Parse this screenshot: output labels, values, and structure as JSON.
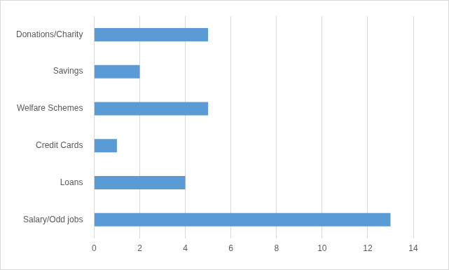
{
  "chart_data": {
    "type": "bar",
    "orientation": "horizontal",
    "categories": [
      "Donations/Charity",
      "Savings",
      "Welfare Schemes",
      "Credit Cards",
      "Loans",
      "Salary/Odd jobs"
    ],
    "values": [
      5,
      2,
      5,
      1,
      4,
      13
    ],
    "color": "#5b9bd5",
    "xlim": [
      0,
      14
    ],
    "xticks": [
      0,
      2,
      4,
      6,
      8,
      10,
      12,
      14
    ],
    "grid": true
  }
}
